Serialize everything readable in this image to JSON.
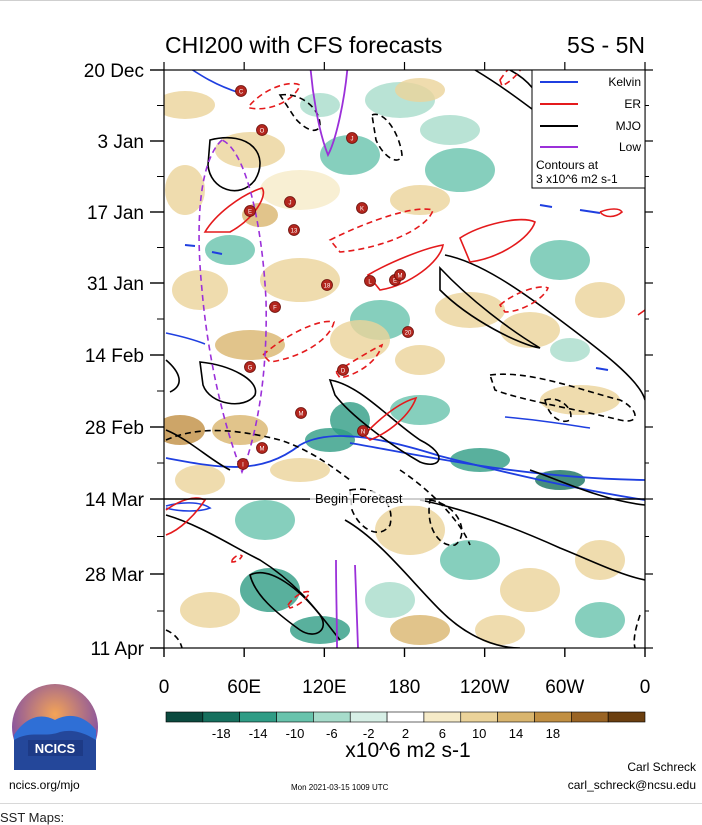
{
  "chart_data": {
    "type": "heatmap",
    "title": "CHI200 with CFS forecasts",
    "region": "5S - 5N",
    "y_ticks": [
      "20 Dec",
      "3 Jan",
      "17 Jan",
      "31 Jan",
      "14 Feb",
      "28 Feb",
      "14 Mar",
      "28 Mar",
      "11 Apr"
    ],
    "x_ticks": [
      "0",
      "60E",
      "120E",
      "180",
      "120W",
      "60W",
      "0"
    ],
    "forecast_label": "Begin Forecast",
    "forecast_date": "14 Mar",
    "legend": [
      {
        "name": "Kelvin",
        "color": "#1f3fe0"
      },
      {
        "name": "ER",
        "color": "#e41a1c"
      },
      {
        "name": "MJO",
        "color": "#000000"
      },
      {
        "name": "Low",
        "color": "#9b30d9"
      }
    ],
    "contour_note_line1": "Contours at",
    "contour_note_line2": "3 x10^6 m2 s-1",
    "colorbar": {
      "labels": [
        "-18",
        "-14",
        "-10",
        "-6",
        "-2",
        "2",
        "6",
        "10",
        "14",
        "18"
      ],
      "units": "x10^6 m2 s-1",
      "colors": [
        "#0b4a3f",
        "#16705e",
        "#2f9c85",
        "#68c3ac",
        "#a7dccb",
        "#d7efe6",
        "#ffffff",
        "#f6ebc8",
        "#ebd39a",
        "#d9b56e",
        "#c18f42",
        "#9a6424",
        "#6b3f10"
      ]
    },
    "tc_markers": [
      "C",
      "O",
      "J",
      "E",
      "J",
      "13",
      "K",
      "F",
      "18",
      "L",
      "E",
      "M",
      "20",
      "G",
      "D",
      "M",
      "N",
      "M",
      "I"
    ]
  },
  "footer": {
    "logo_text": "NCICS",
    "site": "ncics.org/mjo",
    "timestamp": "Mon 2021-03-15 1009 UTC",
    "author": "Carl Schreck",
    "email": "carl_schreck@ncsu.edu"
  },
  "below_text": "SST Maps:"
}
